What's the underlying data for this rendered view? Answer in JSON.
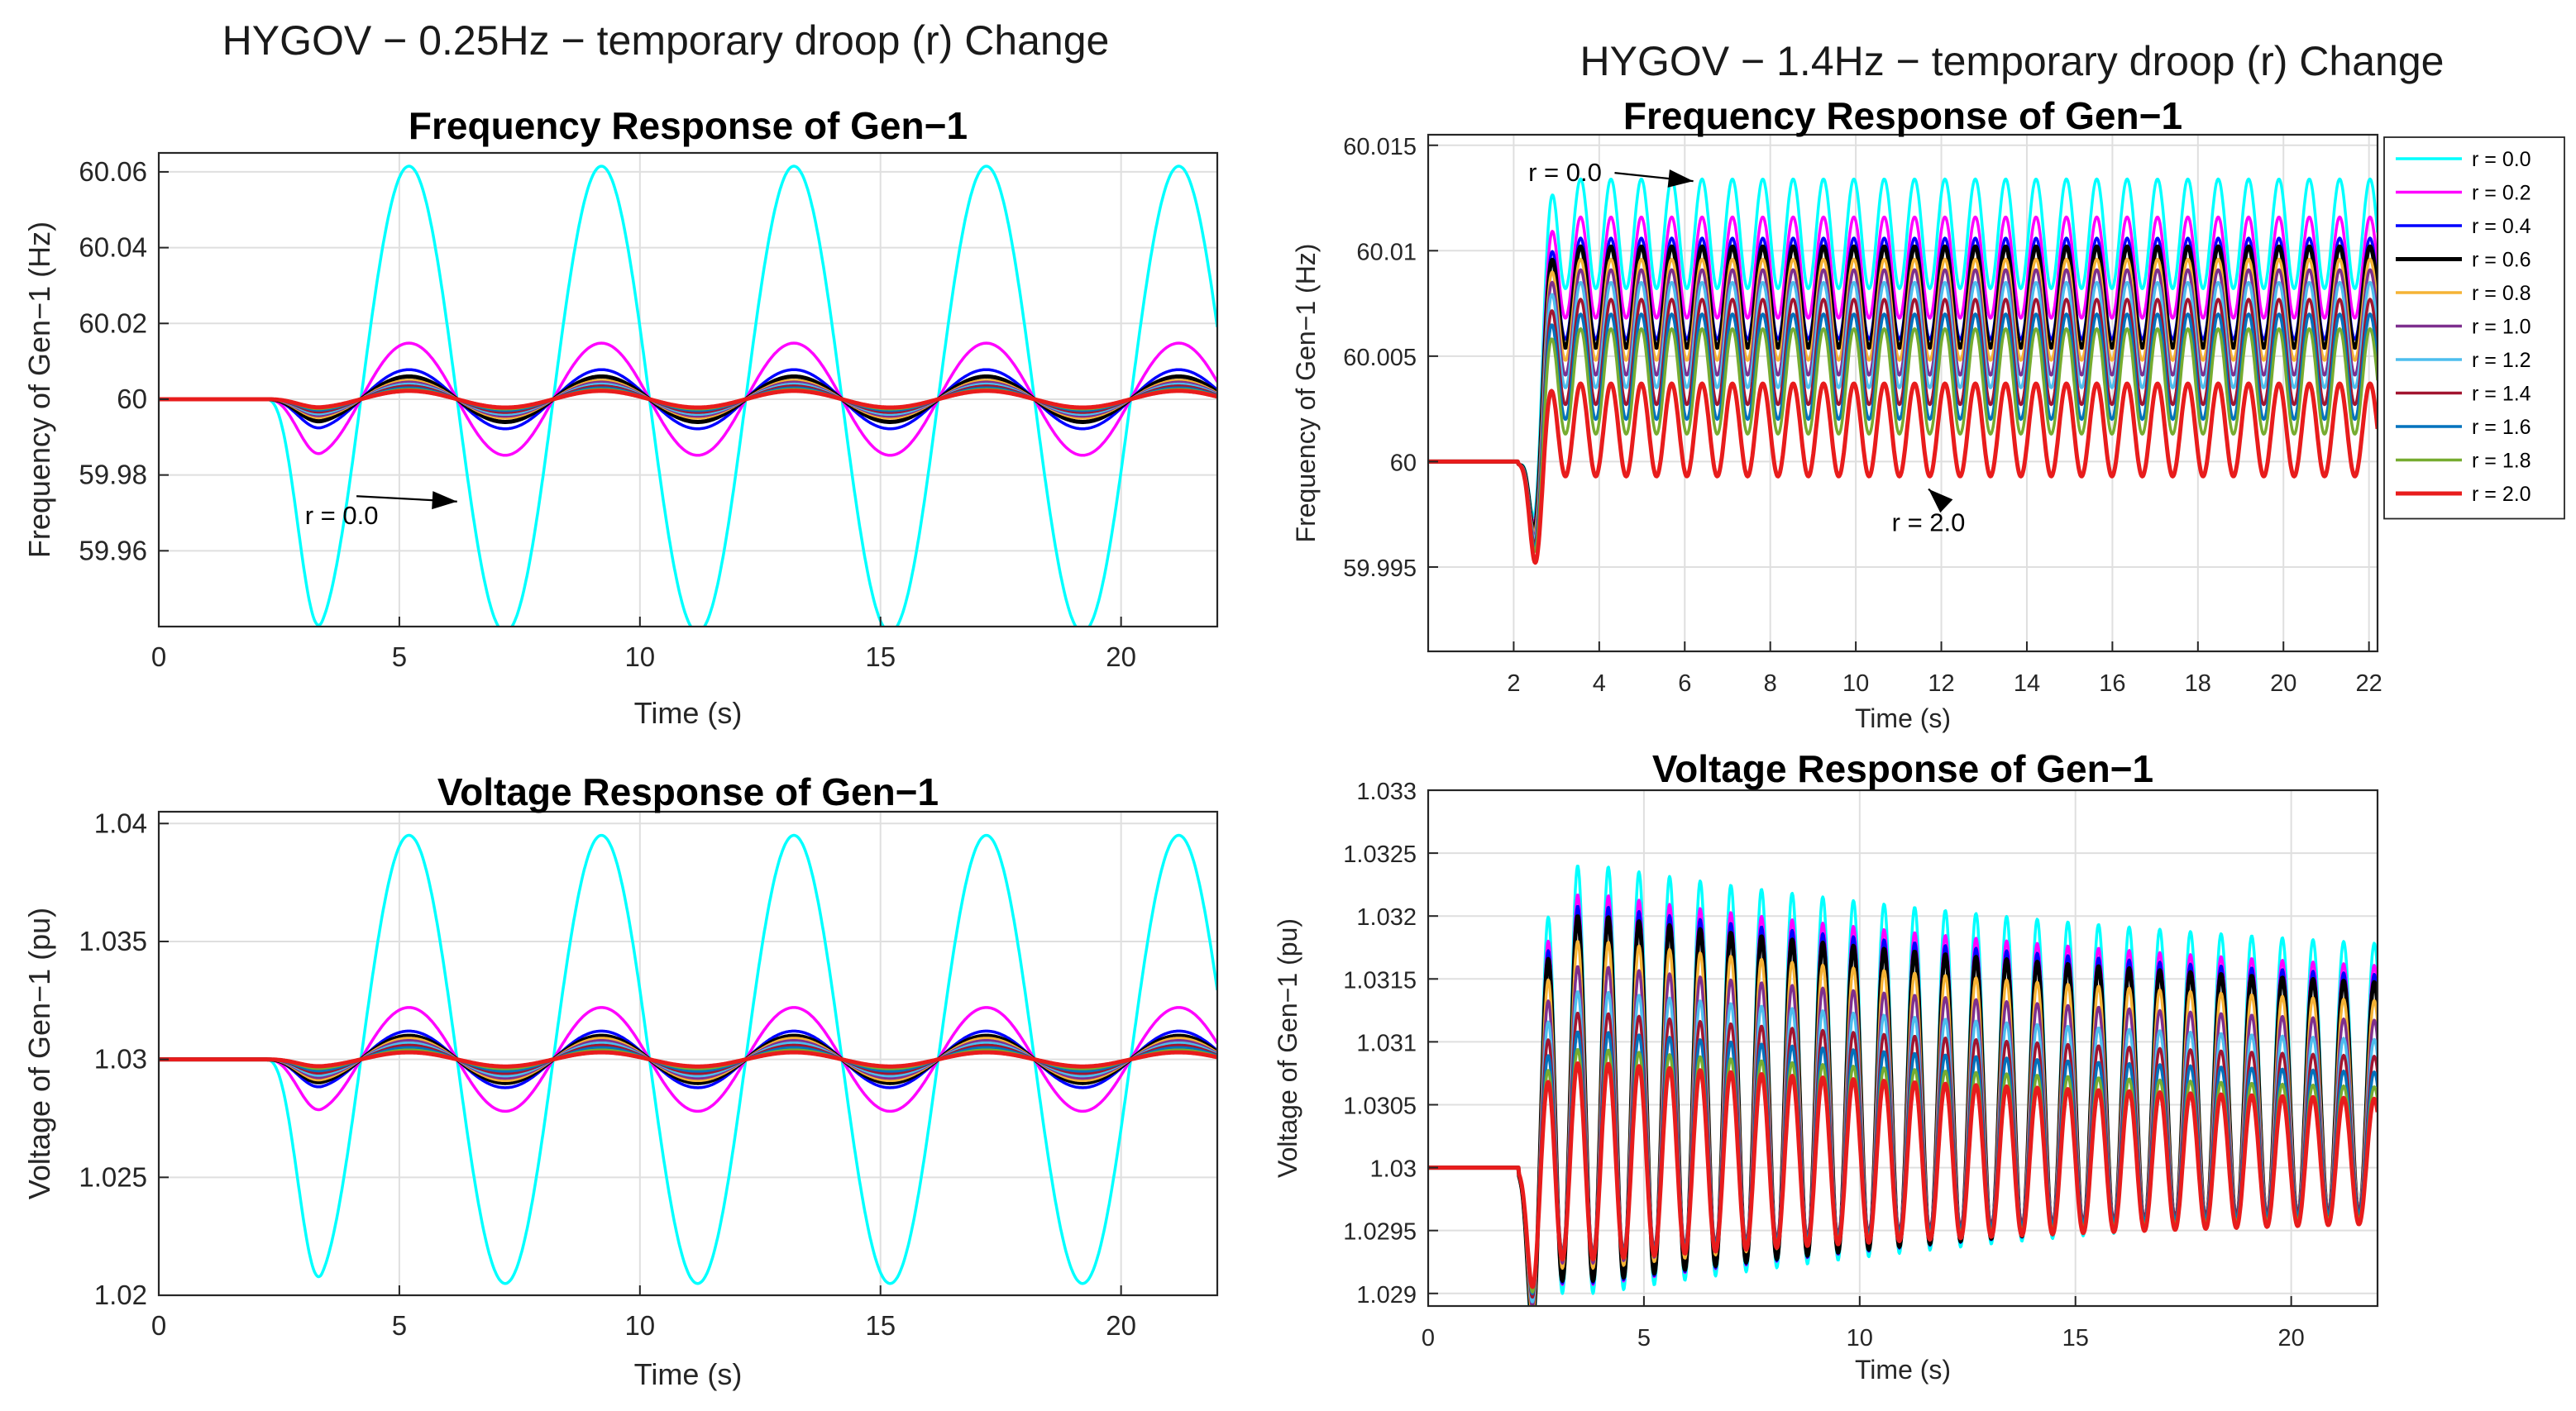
{
  "figure": {
    "left_title": "HYGOV − 0.25Hz − temporary droop (r) Change",
    "right_title": "HYGOV − 1.4Hz − temporary droop (r) Change"
  },
  "chart_data": [
    {
      "id": "freq-left",
      "type": "line",
      "title": "Frequency Response of Gen−1",
      "xlabel": "Time (s)",
      "ylabel": "Frequency of Gen−1 (Hz)",
      "xlim": [
        0,
        22
      ],
      "ylim": [
        59.94,
        60.065
      ],
      "xticks": [
        0,
        5,
        10,
        15,
        20
      ],
      "xtick_labels": [
        "0",
        "5",
        "10",
        "15",
        "20"
      ],
      "yticks": [
        59.96,
        59.98,
        60,
        60.02,
        60.04,
        60.06
      ],
      "ytick_labels": [
        "59.96",
        "59.98",
        "60",
        "60.02",
        "60.04",
        "60.06"
      ],
      "grid": true,
      "signal": {
        "base": 60,
        "t0": 2.2,
        "period": 4.0,
        "rise": 1.2
      },
      "series": [
        {
          "name": "r = 0.0",
          "amp": 0.0615
        },
        {
          "name": "r = 0.2",
          "amp": 0.0148
        },
        {
          "name": "r = 0.4",
          "amp": 0.0078
        },
        {
          "name": "r = 0.6",
          "amp": 0.006
        },
        {
          "name": "r = 0.8",
          "amp": 0.005
        },
        {
          "name": "r = 1.0",
          "amp": 0.0045
        },
        {
          "name": "r = 1.2",
          "amp": 0.004
        },
        {
          "name": "r = 1.4",
          "amp": 0.0035
        },
        {
          "name": "r = 1.6",
          "amp": 0.003
        },
        {
          "name": "r = 1.8",
          "amp": 0.0026
        },
        {
          "name": "r = 2.0",
          "amp": 0.0022
        }
      ],
      "annotations": [
        {
          "text": "r = 0.0",
          "x": 3.8,
          "y": 59.967,
          "arrow_to": [
            6.2,
            59.973
          ]
        }
      ]
    },
    {
      "id": "volt-left",
      "type": "line",
      "title": "Voltage Response of Gen−1",
      "xlabel": "Time (s)",
      "ylabel": "Voltage of Gen−1 (pu)",
      "xlim": [
        0,
        22
      ],
      "ylim": [
        1.02,
        1.0405
      ],
      "xticks": [
        0,
        5,
        10,
        15,
        20
      ],
      "xtick_labels": [
        "0",
        "5",
        "10",
        "15",
        "20"
      ],
      "yticks": [
        1.02,
        1.025,
        1.03,
        1.035,
        1.04
      ],
      "ytick_labels": [
        "1.02",
        "1.025",
        "1.03",
        "1.035",
        "1.04"
      ],
      "grid": true,
      "signal": {
        "base": 1.03,
        "t0": 2.2,
        "period": 4.0,
        "rise": 1.2
      },
      "series": [
        {
          "name": "r = 0.0",
          "amp": 0.0095
        },
        {
          "name": "r = 0.2",
          "amp": 0.0022
        },
        {
          "name": "r = 0.4",
          "amp": 0.0012
        },
        {
          "name": "r = 0.6",
          "amp": 0.001
        },
        {
          "name": "r = 0.8",
          "amp": 0.0009
        },
        {
          "name": "r = 1.0",
          "amp": 0.0008
        },
        {
          "name": "r = 1.2",
          "amp": 0.0007
        },
        {
          "name": "r = 1.4",
          "amp": 0.0006
        },
        {
          "name": "r = 1.6",
          "amp": 0.0005
        },
        {
          "name": "r = 1.8",
          "amp": 0.0004
        },
        {
          "name": "r = 2.0",
          "amp": 0.0003
        }
      ]
    },
    {
      "id": "freq-right",
      "type": "line",
      "title": "Frequency Response of Gen−1",
      "xlabel": "Time (s)",
      "ylabel": "Frequency of Gen−1 (Hz)",
      "xlim": [
        0,
        22.2
      ],
      "ylim": [
        59.991,
        60.0155
      ],
      "xticks": [
        2,
        4,
        6,
        8,
        10,
        12,
        14,
        16,
        18,
        20,
        22
      ],
      "xtick_labels": [
        "2",
        "4",
        "6",
        "8",
        "10",
        "12",
        "14",
        "16",
        "18",
        "20",
        "22"
      ],
      "yticks": [
        59.995,
        60,
        60.005,
        60.01,
        60.015
      ],
      "ytick_labels": [
        "59.995",
        "60",
        "60.005",
        "60.01",
        "60.015"
      ],
      "grid": true,
      "signal": {
        "base": 60,
        "t0": 2.1,
        "period": 0.71,
        "dip_t": 2.5,
        "dip_w": 0.2
      },
      "series": [
        {
          "name": "r = 0.0",
          "color": "#00FFFF",
          "center": 60.0108,
          "amp": 0.0026,
          "dip": 0.0058
        },
        {
          "name": "r = 0.2",
          "color": "#FF00FF",
          "center": 60.0092,
          "amp": 0.0024,
          "dip": 0.0056
        },
        {
          "name": "r = 0.4",
          "color": "#0000FF",
          "center": 60.0082,
          "amp": 0.0024,
          "dip": 0.0055
        },
        {
          "name": "r = 0.6",
          "color": "#000000",
          "center": 60.0078,
          "amp": 0.0024,
          "dip": 0.0054
        },
        {
          "name": "r = 0.8",
          "color": "#F5B335",
          "center": 60.0072,
          "amp": 0.0024,
          "dip": 0.0053
        },
        {
          "name": "r = 1.0",
          "color": "#7E2F8E",
          "center": 60.0066,
          "amp": 0.0025,
          "dip": 0.0052
        },
        {
          "name": "r = 1.2",
          "color": "#4DBEEE",
          "center": 60.006,
          "amp": 0.0025,
          "dip": 0.0051
        },
        {
          "name": "r = 1.4",
          "color": "#A2142F",
          "center": 60.0052,
          "amp": 0.0025,
          "dip": 0.005
        },
        {
          "name": "r = 1.6",
          "color": "#0072BD",
          "center": 60.0045,
          "amp": 0.0025,
          "dip": 0.0049
        },
        {
          "name": "r = 1.8",
          "color": "#77AC30",
          "center": 60.0038,
          "amp": 0.0025,
          "dip": 0.0048
        },
        {
          "name": "r = 2.0",
          "color": "#E81C1C",
          "center": 60.0015,
          "amp": 0.0022,
          "dip": 0.0045
        }
      ],
      "annotations": [
        {
          "text": "r = 0.0",
          "x": 3.2,
          "y": 60.0133,
          "arrow_to": [
            6.2,
            60.0133
          ]
        },
        {
          "text": "r = 2.0",
          "x": 11.7,
          "y": 59.9967,
          "arrow_to": [
            11.7,
            59.9987
          ]
        }
      ],
      "legend": "outside-right"
    },
    {
      "id": "volt-right",
      "type": "line",
      "title": "Voltage Response of Gen−1",
      "xlabel": "Time (s)",
      "ylabel": "Voltage of Gen−1 (pu)",
      "xlim": [
        0,
        22
      ],
      "ylim": [
        1.0289,
        1.033
      ],
      "xticks": [
        0,
        5,
        10,
        15,
        20
      ],
      "xtick_labels": [
        "0",
        "5",
        "10",
        "15",
        "20"
      ],
      "yticks": [
        1.029,
        1.0295,
        1.03,
        1.0305,
        1.031,
        1.0315,
        1.032,
        1.0325,
        1.033
      ],
      "ytick_labels": [
        "1.029",
        "1.0295",
        "1.03",
        "1.0305",
        "1.031",
        "1.0315",
        "1.032",
        "1.0325",
        "1.033"
      ],
      "grid": true,
      "signal": {
        "base": 1.03,
        "t0": 2.1,
        "period": 0.71,
        "dip_t": 2.4,
        "dip_w": 0.18,
        "decay": 0.06
      },
      "series": [
        {
          "name": "r = 0.0",
          "center": 1.0307,
          "amp": 0.0017,
          "dip": 0.0011
        },
        {
          "name": "r = 0.2",
          "center": 1.03062,
          "amp": 0.00155,
          "dip": 0.00105
        },
        {
          "name": "r = 0.4",
          "center": 1.03058,
          "amp": 0.0015,
          "dip": 0.001
        },
        {
          "name": "r = 0.6",
          "center": 1.03055,
          "amp": 0.00145,
          "dip": 0.00098
        },
        {
          "name": "r = 0.8",
          "center": 1.0305,
          "amp": 0.0013,
          "dip": 0.00095
        },
        {
          "name": "r = 1.0",
          "center": 1.03042,
          "amp": 0.00118,
          "dip": 0.0009
        },
        {
          "name": "r = 1.2",
          "center": 1.03035,
          "amp": 0.00105,
          "dip": 0.00088
        },
        {
          "name": "r = 1.4",
          "center": 1.03028,
          "amp": 0.00095,
          "dip": 0.00085
        },
        {
          "name": "r = 1.6",
          "center": 1.0302,
          "amp": 0.00088,
          "dip": 0.00082
        },
        {
          "name": "r = 1.8",
          "center": 1.03012,
          "amp": 0.00082,
          "dip": 0.0008
        },
        {
          "name": "r = 2.0",
          "center": 1.03005,
          "amp": 0.00078,
          "dip": 0.00075
        }
      ]
    }
  ]
}
